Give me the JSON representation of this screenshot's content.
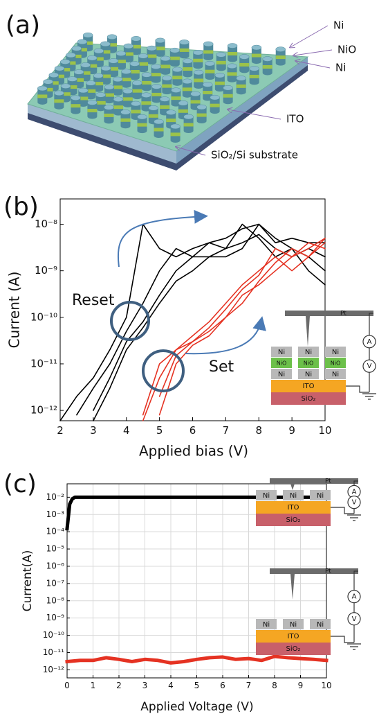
{
  "panel_a": {
    "label": "(a)",
    "labels": [
      "Ni",
      "NiO",
      "Ni",
      "ITO",
      "SiO₂/Si substrate"
    ]
  },
  "chart_data": [
    {
      "type": "line",
      "panel_label": "(b)",
      "xlabel": "Applied bias (V)",
      "ylabel": "Current (A)",
      "yscale": "log",
      "grid": false,
      "xlim": [
        2,
        10
      ],
      "xticks": [
        2,
        3,
        4,
        5,
        6,
        7,
        8,
        9,
        10
      ],
      "ylim": [
        6e-13,
        3.5e-08
      ],
      "yticks": [
        {
          "value": 1e-08,
          "label": "10⁻⁸"
        },
        {
          "value": 1e-09,
          "label": "10⁻⁹"
        },
        {
          "value": 1e-10,
          "label": "10⁻¹⁰"
        },
        {
          "value": 1e-11,
          "label": "10⁻¹¹"
        },
        {
          "value": 1e-12,
          "label": "10⁻¹²"
        }
      ],
      "x": [
        2,
        2.5,
        3,
        3.5,
        4,
        4.5,
        5,
        5.5,
        6,
        6.5,
        7,
        7.5,
        8,
        8.5,
        9,
        9.5,
        10
      ],
      "series": [
        {
          "color": "#000000",
          "values": [
            6e-13,
            2e-12,
            5e-12,
            2e-11,
            1e-10,
            1e-08,
            3e-09,
            2e-09,
            3e-09,
            4e-09,
            5e-09,
            8e-09,
            1e-08,
            5e-09,
            3e-09,
            2e-09,
            1e-09
          ]
        },
        {
          "color": "#000000",
          "values": [
            null,
            8e-13,
            3e-12,
            1e-11,
            5e-11,
            2e-10,
            1e-09,
            3e-09,
            2e-09,
            4e-09,
            3e-09,
            1e-08,
            5e-09,
            2e-09,
            3e-09,
            1e-09,
            5e-10
          ]
        },
        {
          "color": "#000000",
          "values": [
            null,
            null,
            1e-12,
            5e-12,
            3e-11,
            8e-11,
            3e-10,
            1e-09,
            2e-09,
            2e-09,
            3e-09,
            4e-09,
            6e-09,
            3e-09,
            2e-09,
            3e-09,
            2e-09
          ]
        },
        {
          "color": "#000000",
          "values": [
            null,
            null,
            6e-13,
            3e-12,
            2e-11,
            6e-11,
            2e-10,
            6e-10,
            1e-09,
            2e-09,
            2e-09,
            3e-09,
            1e-08,
            4e-09,
            5e-09,
            4e-09,
            4e-09
          ]
        },
        {
          "color": "#e53222",
          "values": [
            null,
            null,
            null,
            null,
            null,
            8e-13,
            1e-11,
            2e-11,
            3e-11,
            5e-11,
            1e-10,
            3e-10,
            5e-10,
            1e-09,
            2e-09,
            3e-09,
            5e-09
          ]
        },
        {
          "color": "#e53222",
          "values": [
            null,
            null,
            null,
            null,
            null,
            6e-13,
            5e-12,
            2e-11,
            4e-11,
            8e-11,
            2e-10,
            5e-10,
            1e-09,
            2e-09,
            1e-09,
            2e-09,
            4e-09
          ]
        },
        {
          "color": "#e53222",
          "values": [
            null,
            null,
            null,
            null,
            null,
            null,
            2e-12,
            1.5e-11,
            3e-11,
            6e-11,
            1.5e-10,
            4e-10,
            8e-10,
            3e-09,
            2e-09,
            4e-09,
            3e-09
          ]
        },
        {
          "color": "#e53222",
          "values": [
            null,
            null,
            null,
            null,
            null,
            null,
            8e-13,
            1e-11,
            2.5e-11,
            4e-11,
            1e-10,
            2e-10,
            6e-10,
            1.5e-09,
            3e-09,
            2e-09,
            5e-09
          ]
        }
      ],
      "annotations": [
        "Reset",
        "Set"
      ],
      "insets": [
        {
          "pt": "Pt",
          "rows": [
            [
              "Ni",
              "Ni",
              "Ni"
            ],
            [
              "NiO",
              "NiO",
              "NiO"
            ],
            [
              "Ni",
              "Ni",
              "Ni"
            ]
          ],
          "ito": "ITO",
          "sio2": "SiO₂",
          "meters": [
            "A",
            "V"
          ]
        }
      ]
    },
    {
      "type": "line",
      "panel_label": "(c)",
      "xlabel": "Applied Voltage (V)",
      "ylabel": "Current(A)",
      "yscale": "log",
      "grid": true,
      "xlim": [
        0,
        10
      ],
      "xticks": [
        0,
        1,
        2,
        3,
        4,
        5,
        6,
        7,
        8,
        9,
        10
      ],
      "ylim": [
        3.4e-13,
        0.06
      ],
      "yticks": [
        {
          "value": 0.01,
          "label": "10⁻²"
        },
        {
          "value": 0.001,
          "label": "10⁻³"
        },
        {
          "value": 0.0001,
          "label": "10⁻⁴"
        },
        {
          "value": 1e-05,
          "label": "10⁻⁵"
        },
        {
          "value": 1e-06,
          "label": "10⁻⁶"
        },
        {
          "value": 1e-07,
          "label": "10⁻⁷"
        },
        {
          "value": 1e-08,
          "label": "10⁻⁸"
        },
        {
          "value": 1e-09,
          "label": "10⁻⁹"
        },
        {
          "value": 1e-10,
          "label": "10⁻¹⁰"
        },
        {
          "value": 1e-11,
          "label": "10⁻¹¹"
        },
        {
          "value": 1e-12,
          "label": "10⁻¹²"
        }
      ],
      "series": [
        {
          "color": "#000000",
          "x": [
            0,
            0.1,
            0.2,
            0.3,
            0.5,
            1,
            2,
            3,
            4,
            5,
            6,
            7,
            8,
            9,
            10
          ],
          "values": [
            0.00015,
            0.004,
            0.008,
            0.01,
            0.01,
            0.01,
            0.01,
            0.01,
            0.01,
            0.01,
            0.01,
            0.01,
            0.01,
            0.01,
            0.01
          ]
        },
        {
          "color": "#e53222",
          "x": [
            0,
            0.5,
            1,
            1.5,
            2,
            2.5,
            3,
            3.5,
            4,
            4.5,
            5,
            5.5,
            6,
            6.5,
            7,
            7.5,
            8,
            8.5,
            9,
            9.5,
            10
          ],
          "values": [
            3e-12,
            3.5e-12,
            3.5e-12,
            5e-12,
            4e-12,
            3e-12,
            4e-12,
            3.5e-12,
            2.5e-12,
            3e-12,
            4e-12,
            5e-12,
            5.5e-12,
            4e-12,
            4.5e-12,
            3.5e-12,
            6e-12,
            5e-12,
            4.5e-12,
            4e-12,
            3.5e-12
          ]
        }
      ],
      "insets": [
        {
          "pt": "Pt",
          "rows": [
            [
              "Ni",
              "Ni",
              "Ni"
            ]
          ],
          "ito": "ITO",
          "sio2": "SiO₂",
          "meters": [
            "A",
            "V"
          ]
        },
        {
          "pt": "Pt",
          "rows": [
            [
              "Ni",
              "Ni",
              "Ni"
            ]
          ],
          "ito": "ITO",
          "sio2": "SiO₂",
          "meters": [
            "A",
            "V"
          ]
        }
      ]
    }
  ]
}
